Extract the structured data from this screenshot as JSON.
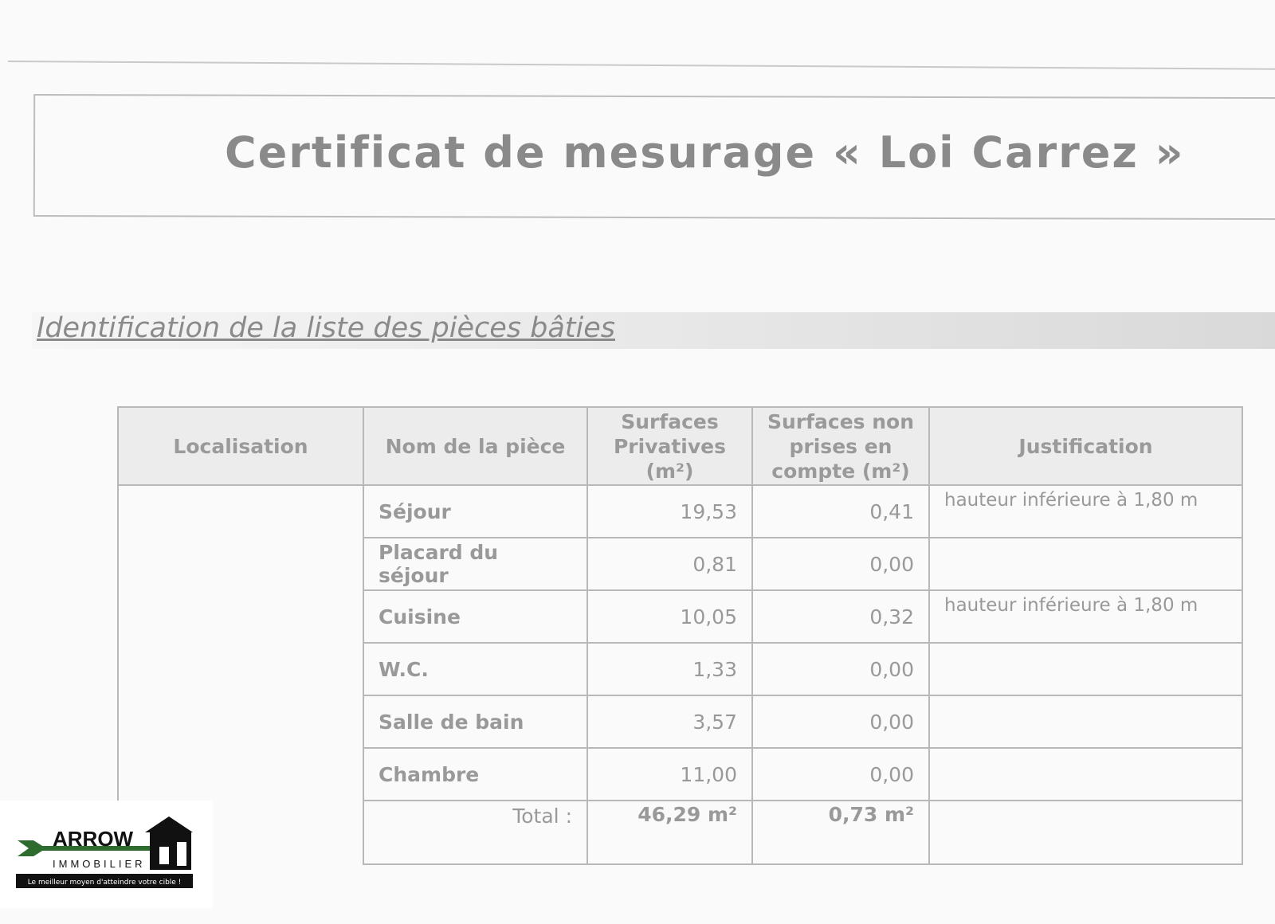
{
  "title": "Certificat de mesurage « Loi Carrez »",
  "subtitle": "Identification de la liste des pièces bâties",
  "table": {
    "headers": [
      "Localisation",
      "Nom de la pièce",
      "Surfaces Privatives (m²)",
      "Surfaces non prises en compte (m²)",
      "Justification"
    ],
    "rows": [
      {
        "name": "Séjour",
        "privative": "19,53",
        "non_prises": "0,41",
        "justification": "hauteur inférieure à 1,80 m"
      },
      {
        "name": "Placard du séjour",
        "privative": "0,81",
        "non_prises": "0,00",
        "justification": ""
      },
      {
        "name": "Cuisine",
        "privative": "10,05",
        "non_prises": "0,32",
        "justification": "hauteur inférieure à 1,80 m"
      },
      {
        "name": "W.C.",
        "privative": "1,33",
        "non_prises": "0,00",
        "justification": ""
      },
      {
        "name": "Salle de bain",
        "privative": "3,57",
        "non_prises": "0,00",
        "justification": ""
      },
      {
        "name": "Chambre",
        "privative": "11,00",
        "non_prises": "0,00",
        "justification": ""
      }
    ],
    "total_label": "Total :",
    "total_privative": "46,29 m²",
    "total_non_prises": "0,73 m²"
  },
  "logo": {
    "name": "ARROW",
    "sub": "IMMOBILIER",
    "tagline": "Le meilleur moyen d'atteindre votre cible !",
    "green": "#2e6b2e"
  }
}
